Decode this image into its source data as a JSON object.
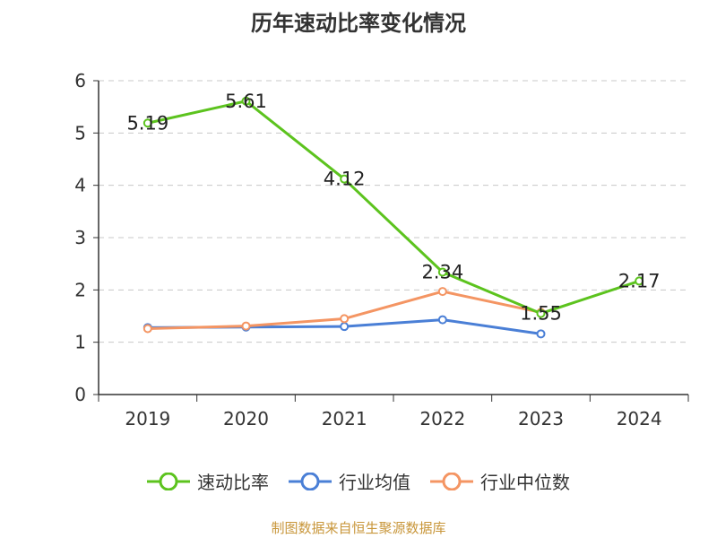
{
  "page": {
    "title": "历年速动比率变化情况",
    "source": "制图数据来自恒生聚源数据库"
  },
  "chart_data": {
    "type": "line",
    "title": "历年速动比率变化情况",
    "categories": [
      "2019",
      "2020",
      "2021",
      "2022",
      "2023",
      "2024"
    ],
    "ylim": [
      0,
      6
    ],
    "yticks": [
      "0",
      "1",
      "2",
      "3",
      "4",
      "5",
      "6"
    ],
    "grid": true,
    "legend_position": "bottom",
    "series": [
      {
        "name": "速动比率",
        "color": "#5cc31e",
        "values": [
          5.19,
          5.61,
          4.12,
          2.34,
          1.55,
          2.17
        ],
        "labels": [
          "5.19",
          "5.61",
          "4.12",
          "2.34",
          "1.55",
          "2.17"
        ]
      },
      {
        "name": "行业均值",
        "color": "#4a7fd6",
        "values": [
          1.28,
          1.29,
          1.3,
          1.43,
          1.16,
          null
        ]
      },
      {
        "name": "行业中位数",
        "color": "#f49563",
        "values": [
          1.26,
          1.31,
          1.45,
          1.97,
          1.57,
          null
        ]
      }
    ]
  }
}
